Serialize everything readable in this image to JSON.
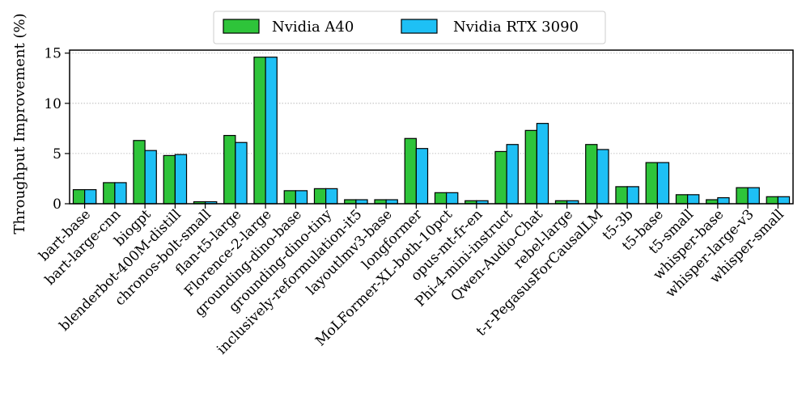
{
  "chart_data": {
    "type": "bar",
    "ylabel": "Throughput Improvement (%)",
    "xlabel": "",
    "ylim": [
      0,
      15.3
    ],
    "yticks": [
      0,
      5,
      10,
      15
    ],
    "grid": "horizontal-dotted",
    "legend": "top-center",
    "categories": [
      "bart-base",
      "bart-large-cnn",
      "biogpt",
      "blenderbot-400M-distill",
      "chronos-bolt-small",
      "flan-t5-large",
      "Florence-2-large",
      "grounding-dino-base",
      "grounding-dino-tiny",
      "inclusively-reformulation-it5",
      "layoutlmv3-base",
      "longformer",
      "MoLFormer-XL-both-10pct",
      "opus-mt-fr-en",
      "Phi-4-mini-instruct",
      "Qwen-Audio-Chat",
      "rebel-large",
      "t-r-PegasusForCausalLM",
      "t5-3b",
      "t5-base",
      "t5-small",
      "whisper-base",
      "whisper-large-v3",
      "whisper-small"
    ],
    "series": [
      {
        "name": "Nvidia A40",
        "color": "#2ec43a",
        "values": [
          1.4,
          2.1,
          6.3,
          4.8,
          0.2,
          6.8,
          14.6,
          1.3,
          1.5,
          0.4,
          0.4,
          6.5,
          1.1,
          0.3,
          5.2,
          7.3,
          0.3,
          5.9,
          1.7,
          4.1,
          0.9,
          0.4,
          1.6,
          0.7
        ]
      },
      {
        "name": "Nvidia RTX 3090",
        "color": "#1ec0f5",
        "values": [
          1.4,
          2.1,
          5.3,
          4.9,
          0.2,
          6.1,
          14.6,
          1.3,
          1.5,
          0.4,
          0.4,
          5.5,
          1.1,
          0.3,
          5.9,
          8.0,
          0.3,
          5.4,
          1.7,
          4.1,
          0.9,
          0.6,
          1.6,
          0.7
        ]
      }
    ]
  }
}
